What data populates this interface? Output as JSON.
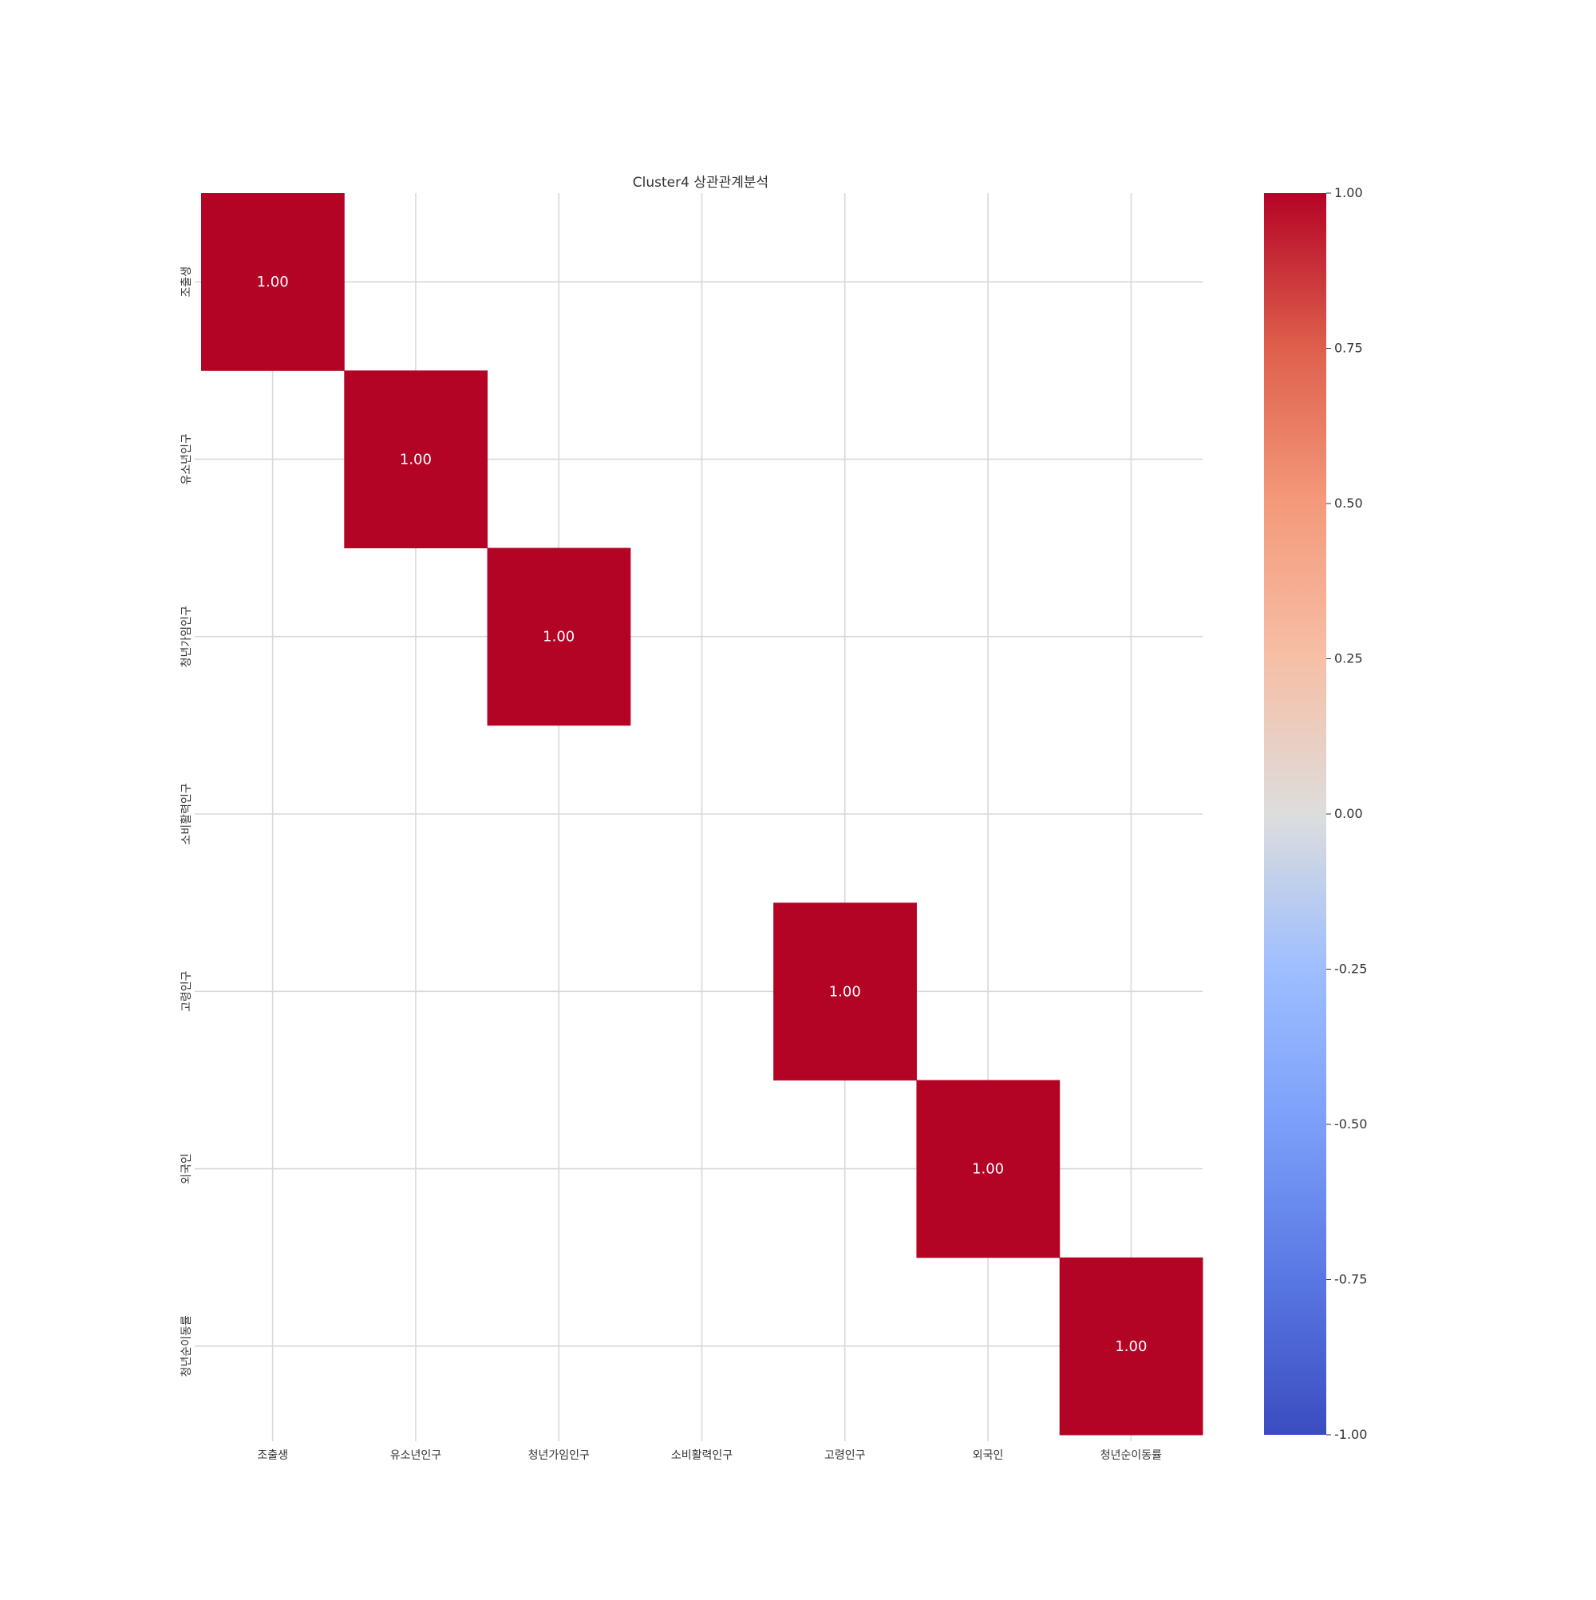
{
  "chart_data": {
    "type": "heatmap",
    "title": "Cluster4 상관관계분석",
    "xlabel": "",
    "ylabel": "",
    "x_categories": [
      "조출생",
      "유소년인구",
      "청년가임인구",
      "소비활력인구",
      "고령인구",
      "외국인",
      "청년순이동률"
    ],
    "y_categories": [
      "조출생",
      "유소년인구",
      "청년가임인구",
      "소비활력인구",
      "고령인구",
      "외국인",
      "청년순이동률"
    ],
    "matrix": [
      [
        1.0,
        null,
        null,
        null,
        null,
        null,
        null
      ],
      [
        null,
        1.0,
        null,
        null,
        null,
        null,
        null
      ],
      [
        null,
        null,
        1.0,
        null,
        null,
        null,
        null
      ],
      [
        null,
        null,
        null,
        null,
        null,
        null,
        null
      ],
      [
        null,
        null,
        null,
        null,
        1.0,
        null,
        null
      ],
      [
        null,
        null,
        null,
        null,
        null,
        1.0,
        null
      ],
      [
        null,
        null,
        null,
        null,
        null,
        null,
        1.0
      ]
    ],
    "annotation_format": "0.00",
    "colormap": "coolwarm",
    "vmin": -1.0,
    "vmax": 1.0,
    "colorbar_ticks": [
      1.0,
      0.75,
      0.5,
      0.25,
      0.0,
      -0.25,
      -0.5,
      -0.75,
      -1.0
    ],
    "colorbar_tick_labels": [
      "1.00",
      "0.75",
      "0.50",
      "0.25",
      "0.00",
      "-0.25",
      "-0.50",
      "-0.75",
      "-1.00"
    ],
    "grid": true,
    "colors": {
      "high": "#b40426",
      "mid": "#dddddd",
      "low": "#3b4cc0",
      "grid": "#d9d9d9",
      "text": "#333333",
      "annotation_text": "#ffffff"
    }
  }
}
